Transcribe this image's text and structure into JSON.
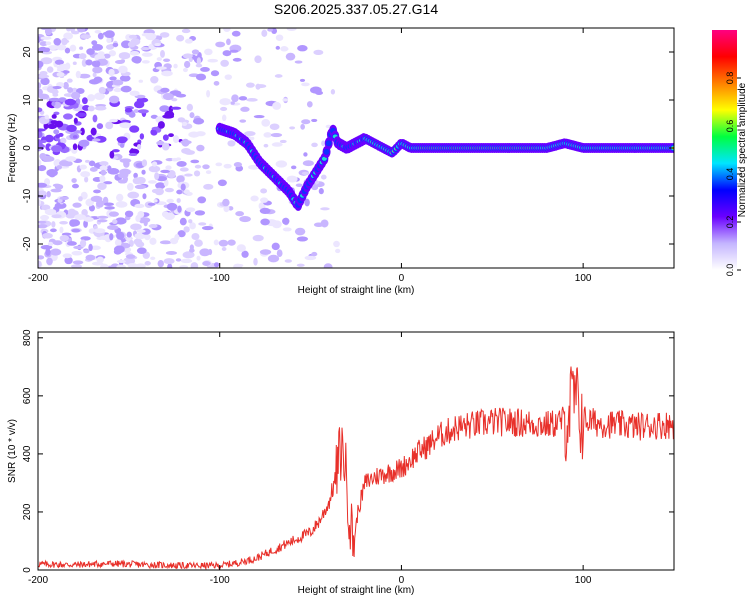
{
  "title": "S206.2025.337.05.27.G14",
  "chart_data": [
    {
      "type": "heatmap",
      "title": "S206.2025.337.05.27.G14",
      "xlabel": "Height of straight line (km)",
      "ylabel": "Frequency (Hz)",
      "xlim": [
        -200,
        150
      ],
      "ylim": [
        -25,
        25
      ],
      "xticks": [
        -200,
        -100,
        0,
        100
      ],
      "yticks": [
        20,
        10,
        0,
        -10,
        -20
      ],
      "colorbar": {
        "label": "Normalized spectral amplitude",
        "range": [
          0.0,
          1.0
        ],
        "ticks": [
          "0.0",
          "0.2",
          "0.4",
          "0.6",
          "0.8"
        ],
        "colors": [
          "#ffffff",
          "#c4b5ff",
          "#6a00ff",
          "#0000ff",
          "#00e5ff",
          "#00ff40",
          "#ffff00",
          "#ff8000",
          "#ff0000",
          "#ff0080"
        ]
      },
      "ridge": {
        "x": [
          -100,
          -92,
          -85,
          -78,
          -70,
          -62,
          -57,
          -52,
          -47,
          -42,
          -38,
          -35,
          -30,
          -25,
          -20,
          -15,
          -10,
          -5,
          0,
          5,
          10,
          20,
          40,
          60,
          80,
          90,
          100,
          120,
          150
        ],
        "y": [
          4,
          3,
          1,
          -3,
          -6,
          -9,
          -12,
          -8,
          -5,
          -2,
          4,
          1,
          0,
          1,
          2,
          1,
          0,
          -1,
          1,
          0,
          0,
          0,
          0,
          0,
          0,
          1,
          0,
          0,
          0
        ]
      }
    },
    {
      "type": "line",
      "xlabel": "Height of straight line (km)",
      "ylabel": "SNR (10 * v/v)",
      "xlim": [
        -200,
        150
      ],
      "ylim": [
        0,
        820
      ],
      "xticks": [
        -200,
        -100,
        0,
        100
      ],
      "yticks": [
        0,
        200,
        400,
        600,
        800
      ],
      "color": "#e8302a",
      "series": [
        {
          "name": "SNR",
          "x": [
            -200,
            -180,
            -160,
            -140,
            -120,
            -100,
            -90,
            -80,
            -70,
            -60,
            -50,
            -45,
            -40,
            -36,
            -34,
            -32,
            -30,
            -28,
            -26,
            -24,
            -22,
            -20,
            -15,
            -10,
            -5,
            0,
            5,
            10,
            15,
            20,
            30,
            40,
            50,
            60,
            70,
            80,
            85,
            90,
            93,
            95,
            97,
            100,
            105,
            110,
            120,
            130,
            140,
            150
          ],
          "y": [
            20,
            18,
            22,
            18,
            15,
            15,
            25,
            40,
            70,
            100,
            130,
            170,
            230,
            320,
            400,
            420,
            300,
            150,
            100,
            200,
            250,
            300,
            320,
            330,
            340,
            350,
            380,
            410,
            430,
            460,
            490,
            500,
            510,
            510,
            505,
            500,
            505,
            520,
            560,
            600,
            550,
            520,
            510,
            505,
            500,
            495,
            500,
            500
          ]
        }
      ]
    }
  ]
}
